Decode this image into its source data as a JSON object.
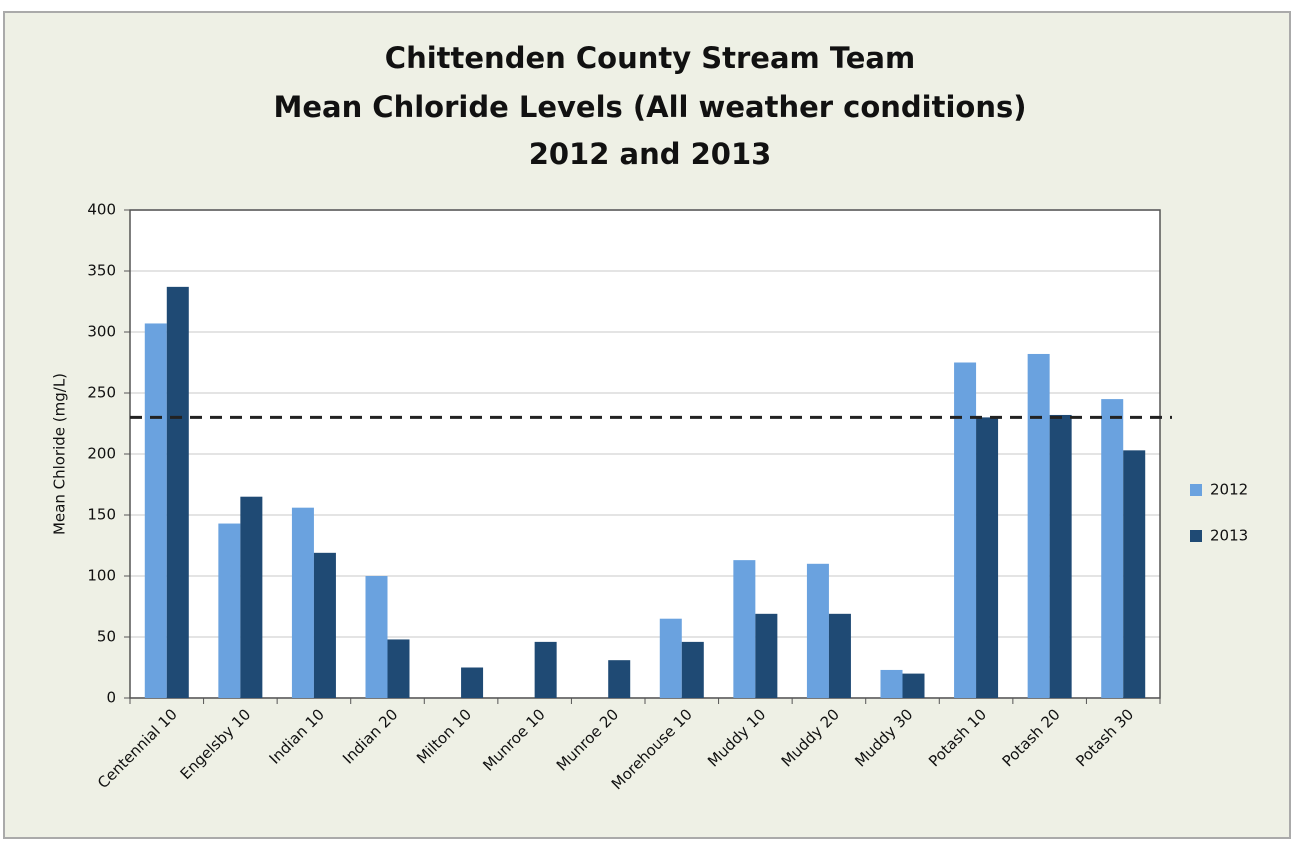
{
  "chart_data": {
    "type": "bar",
    "title": [
      "Chittenden County Stream Team",
      "Mean Chloride Levels (All weather conditions)",
      "2012 and 2013"
    ],
    "y_label": "Mean Chloride (mg/L)",
    "categories": [
      "Centennial 10",
      "Engelsby 10",
      "Indian 10",
      "Indian 20",
      "Milton 10",
      "Munroe 10",
      "Munroe 20",
      "Morehouse 10",
      "Muddy 10",
      "Muddy 20",
      "Muddy 30",
      "Potash 10",
      "Potash 20",
      "Potash 30"
    ],
    "series": [
      {
        "name": "2012",
        "color": "#6aa2df",
        "values": [
          307,
          143,
          156,
          100,
          null,
          null,
          null,
          65,
          113,
          110,
          23,
          275,
          282,
          245
        ]
      },
      {
        "name": "2013",
        "color": "#1f4a74",
        "values": [
          337,
          165,
          119,
          48,
          25,
          46,
          31,
          46,
          69,
          69,
          20,
          230,
          232,
          203
        ]
      }
    ],
    "reference_line": 230,
    "ylim": [
      0,
      400
    ],
    "yticks": [
      0,
      50,
      100,
      150,
      200,
      250,
      300,
      350,
      400
    ],
    "grid": true,
    "legend": "right"
  }
}
